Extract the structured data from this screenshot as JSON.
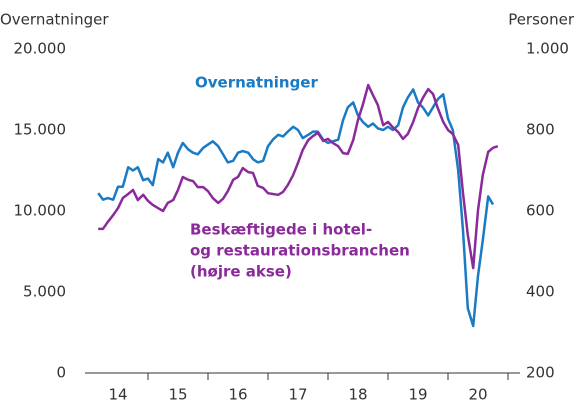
{
  "chart_data": {
    "type": "line",
    "ylabel": "Overnatninger",
    "y2label": "Personer",
    "annotations": [
      {
        "lines": [
          "Overnatninger"
        ]
      },
      {
        "lines": [
          "Beskæftigede i hotel-",
          "og restaurationsbranchen",
          "(højre akse)"
        ]
      }
    ],
    "x": [
      14.17,
      14.25,
      14.33,
      14.42,
      14.5,
      14.58,
      14.67,
      14.75,
      14.83,
      14.92,
      15,
      15.08,
      15.17,
      15.25,
      15.33,
      15.42,
      15.5,
      15.58,
      15.67,
      15.75,
      15.83,
      15.92,
      16,
      16.08,
      16.17,
      16.25,
      16.33,
      16.42,
      16.5,
      16.58,
      16.67,
      16.75,
      16.83,
      16.92,
      17,
      17.08,
      17.17,
      17.25,
      17.33,
      17.42,
      17.5,
      17.58,
      17.67,
      17.75,
      17.83,
      17.92,
      18,
      18.08,
      18.17,
      18.25,
      18.33,
      18.42,
      18.5,
      18.58,
      18.67,
      18.75,
      18.83,
      18.92,
      19,
      19.08,
      19.17,
      19.25,
      19.33,
      19.42,
      19.5,
      19.58,
      19.67,
      19.75,
      19.83,
      19.92,
      20,
      20.08,
      20.17,
      20.25,
      20.33,
      20.42,
      20.5,
      20.58,
      20.67,
      20.75,
      20.83
    ],
    "series": [
      {
        "name": "Overnatninger",
        "color": "#1a7bc4",
        "axis": "y",
        "values": [
          11100,
          10700,
          10800,
          10700,
          11500,
          11500,
          12700,
          12500,
          12700,
          11900,
          12000,
          11600,
          13200,
          13000,
          13600,
          12700,
          13600,
          14200,
          13800,
          13600,
          13500,
          13900,
          14100,
          14300,
          14000,
          13500,
          13000,
          13100,
          13600,
          13700,
          13600,
          13200,
          13000,
          13100,
          14000,
          14400,
          14700,
          14600,
          14900,
          15200,
          15000,
          14500,
          14700,
          14900,
          14900,
          14400,
          14200,
          14300,
          14400,
          15600,
          16400,
          16700,
          15900,
          15500,
          15200,
          15400,
          15100,
          15000,
          15200,
          15000,
          15300,
          16400,
          17000,
          17500,
          16700,
          16400,
          15900,
          16400,
          16900,
          17200,
          15700,
          15000,
          12500,
          8800,
          4000,
          2900,
          6000,
          8200,
          10900,
          10400,
          null
        ]
      },
      {
        "name": "Beskæftigede i hotel- og restaurationsbranchen",
        "color": "#8b2a9a",
        "axis": "y2",
        "values": [
          556,
          556,
          573,
          590,
          607,
          632,
          642,
          652,
          627,
          640,
          625,
          615,
          607,
          600,
          620,
          627,
          652,
          684,
          677,
          674,
          659,
          659,
          649,
          632,
          620,
          630,
          649,
          677,
          684,
          706,
          696,
          694,
          662,
          657,
          644,
          642,
          640,
          647,
          664,
          689,
          719,
          751,
          775,
          785,
          793,
          773,
          778,
          768,
          760,
          743,
          741,
          775,
          825,
          862,
          911,
          886,
          862,
          812,
          820,
          807,
          795,
          778,
          790,
          820,
          854,
          879,
          901,
          889,
          854,
          820,
          800,
          790,
          763,
          644,
          541,
          459,
          602,
          689,
          746,
          756,
          760
        ]
      }
    ],
    "xlim": [
      13.95,
      21.2
    ],
    "xticks": [
      {
        "value": 14.5,
        "label": "14"
      },
      {
        "value": 15.5,
        "label": "15"
      },
      {
        "value": 16.5,
        "label": "16"
      },
      {
        "value": 17.5,
        "label": "17"
      },
      {
        "value": 18.5,
        "label": "18"
      },
      {
        "value": 19.5,
        "label": "19"
      },
      {
        "value": 20.5,
        "label": "20"
      }
    ],
    "xtick_marks": [
      15,
      16,
      17,
      18,
      19,
      20,
      21
    ],
    "ylim": [
      0,
      20000
    ],
    "yticks": [
      0,
      {
        "value": 5000,
        "label": "5.000"
      },
      {
        "value": 10000,
        "label": "10.000"
      },
      {
        "value": 15000,
        "label": "15.000"
      },
      {
        "value": 20000,
        "label": "20.000"
      }
    ],
    "y2lim": [
      200,
      1000
    ],
    "y2ticks": [
      200,
      400,
      600,
      800,
      {
        "value": 1000,
        "label": "1.000"
      }
    ]
  }
}
